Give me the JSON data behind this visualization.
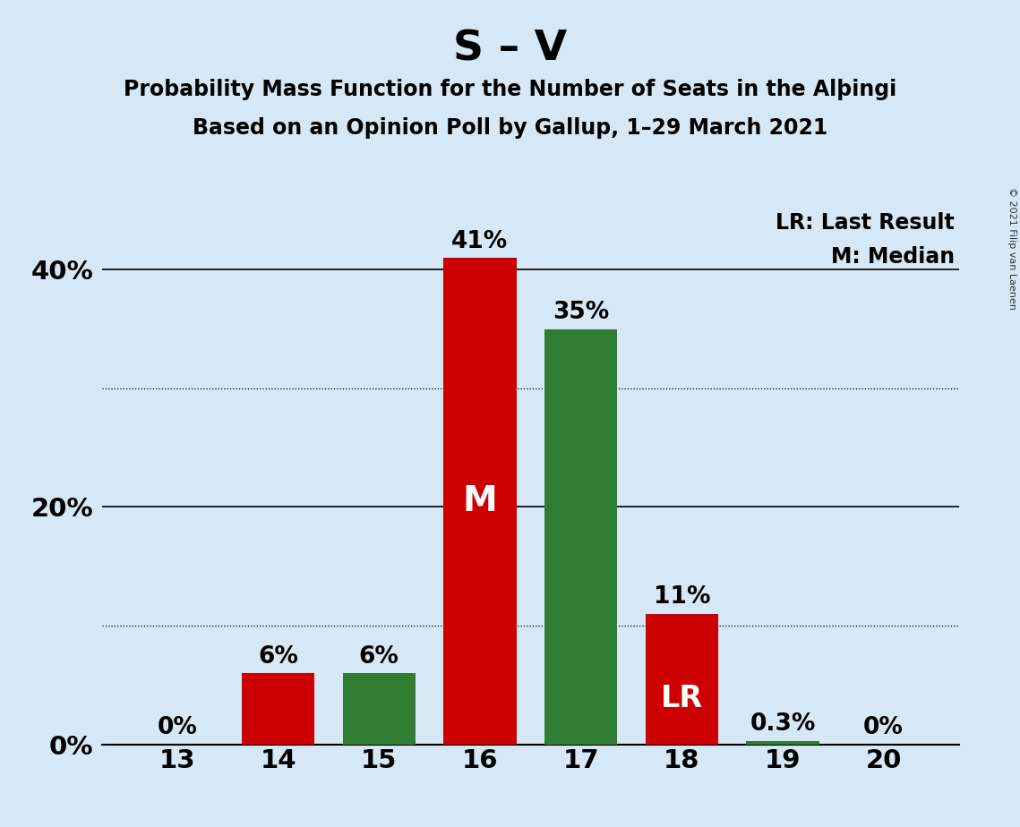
{
  "title": "S – V",
  "subtitle1": "Probability Mass Function for the Number of Seats in the Alþingi",
  "subtitle2": "Based on an Opinion Poll by Gallup, 1–29 March 2021",
  "categories": [
    13,
    14,
    15,
    16,
    17,
    18,
    19,
    20
  ],
  "values": [
    0.0,
    6.0,
    6.0,
    41.0,
    35.0,
    11.0,
    0.3,
    0.0
  ],
  "colors": [
    "#cc0000",
    "#cc0000",
    "#2e7d32",
    "#cc0000",
    "#2e7d32",
    "#cc0000",
    "#2e7d32",
    "#2e7d32"
  ],
  "bar_labels": [
    "0%",
    "6%",
    "6%",
    "41%",
    "35%",
    "11%",
    "0.3%",
    "0%"
  ],
  "median_bar_idx": 3,
  "lr_bar_idx": 5,
  "median_label": "M",
  "lr_label": "LR",
  "legend_lr": "LR: Last Result",
  "legend_m": "M: Median",
  "ytick_positions": [
    0,
    20,
    40
  ],
  "ytick_labels": [
    "0%",
    "20%",
    "40%"
  ],
  "dotted_lines": [
    10,
    30
  ],
  "solid_lines": [
    20,
    40
  ],
  "background_color": "#d6e8f5",
  "title_fontsize": 34,
  "subtitle_fontsize": 17,
  "bar_label_fontsize": 19,
  "axis_tick_fontsize": 21,
  "legend_fontsize": 17,
  "copyright_text": "© 2021 Filip van Laenen",
  "ylim": [
    0,
    46
  ],
  "bar_width": 0.72,
  "median_label_fontsize": 28,
  "lr_label_fontsize": 24
}
